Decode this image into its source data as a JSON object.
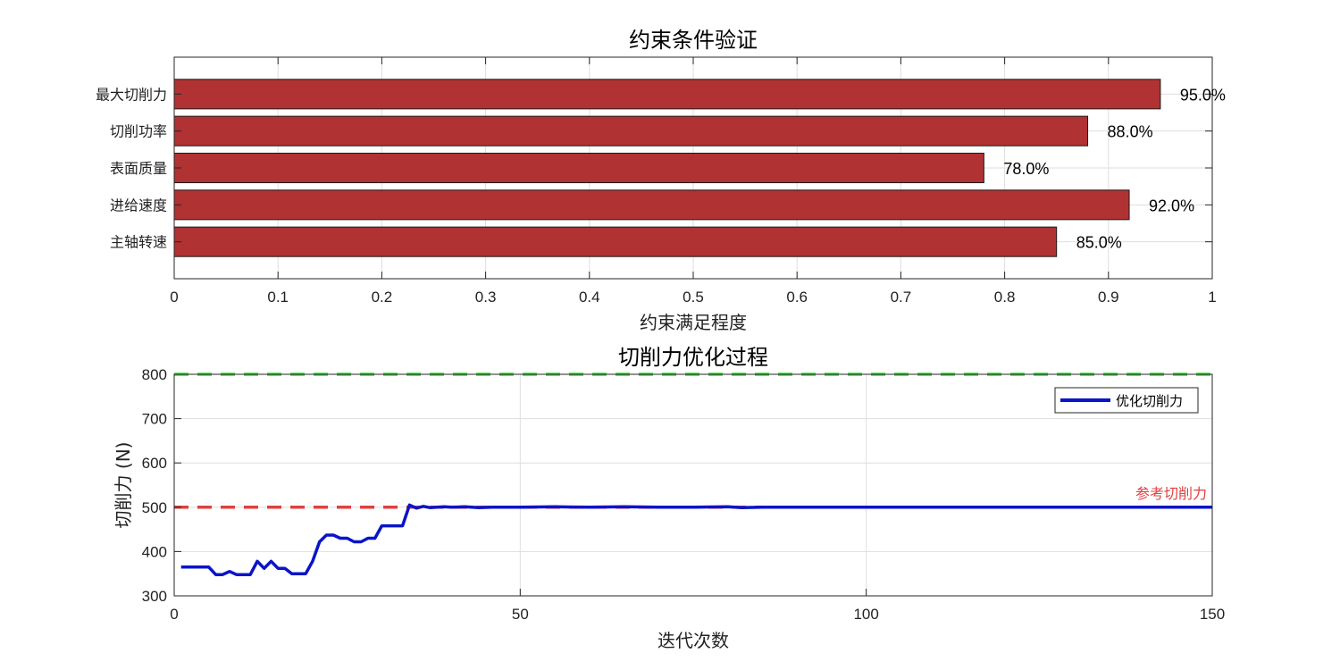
{
  "chart_data": [
    {
      "type": "bar",
      "orientation": "horizontal",
      "title": "约束条件验证",
      "xlabel": "约束满足程度",
      "ylabel": "",
      "categories": [
        "最大切削力",
        "切削功率",
        "表面质量",
        "进给速度",
        "主轴转速"
      ],
      "values": [
        0.95,
        0.88,
        0.78,
        0.92,
        0.85
      ],
      "data_labels": [
        "95.0%",
        "88.0%",
        "78.0%",
        "92.0%",
        "85.0%"
      ],
      "xlim": [
        0,
        1
      ],
      "xticks": [
        0,
        0.1,
        0.2,
        0.3,
        0.4,
        0.5,
        0.6,
        0.7,
        0.8,
        0.9,
        1
      ],
      "xtick_labels": [
        "0",
        "0.1",
        "0.2",
        "0.3",
        "0.4",
        "0.5",
        "0.6",
        "0.7",
        "0.8",
        "0.9",
        "1"
      ],
      "grid": true,
      "bar_color": "#b03232"
    },
    {
      "type": "line",
      "title": "切削力优化过程",
      "xlabel": "迭代次数",
      "ylabel": "切削力 (N)",
      "xlim": [
        0,
        150
      ],
      "ylim": [
        300,
        800
      ],
      "xticks": [
        0,
        50,
        100,
        150
      ],
      "xtick_labels": [
        "0",
        "50",
        "100",
        "150"
      ],
      "yticks": [
        300,
        400,
        500,
        600,
        700,
        800
      ],
      "ytick_labels": [
        "300",
        "400",
        "500",
        "600",
        "700",
        "800"
      ],
      "grid": true,
      "legend": {
        "location": "top-right",
        "entries": [
          "优化切削力"
        ]
      },
      "series": [
        {
          "name": "优化切削力",
          "color": "#0a14c8",
          "x": [
            1,
            2,
            3,
            4,
            5,
            6,
            7,
            8,
            9,
            10,
            11,
            12,
            13,
            14,
            15,
            16,
            17,
            18,
            19,
            20,
            21,
            22,
            23,
            24,
            25,
            26,
            27,
            28,
            29,
            30,
            31,
            32,
            33,
            34,
            35,
            36,
            37,
            38,
            39,
            40,
            42,
            44,
            46,
            48,
            50,
            55,
            60,
            65,
            70,
            75,
            80,
            82,
            85,
            90,
            100,
            110,
            120,
            130,
            140,
            150
          ],
          "y": [
            365,
            365,
            365,
            365,
            365,
            348,
            348,
            355,
            348,
            348,
            348,
            378,
            362,
            378,
            362,
            362,
            350,
            350,
            350,
            378,
            422,
            437,
            437,
            430,
            430,
            422,
            422,
            430,
            430,
            458,
            458,
            458,
            458,
            505,
            498,
            502,
            499,
            500,
            501,
            500,
            501,
            499,
            500,
            500,
            500,
            501,
            500,
            501,
            500,
            500,
            501,
            499,
            500,
            500,
            500,
            500,
            500,
            500,
            500,
            500
          ]
        }
      ],
      "reference_lines": [
        {
          "y": 800,
          "color": "#33dd33",
          "style": "dashed",
          "label": ""
        },
        {
          "y": 500,
          "color": "#e04040",
          "style": "dashed",
          "label": "参考切削力"
        }
      ]
    }
  ]
}
